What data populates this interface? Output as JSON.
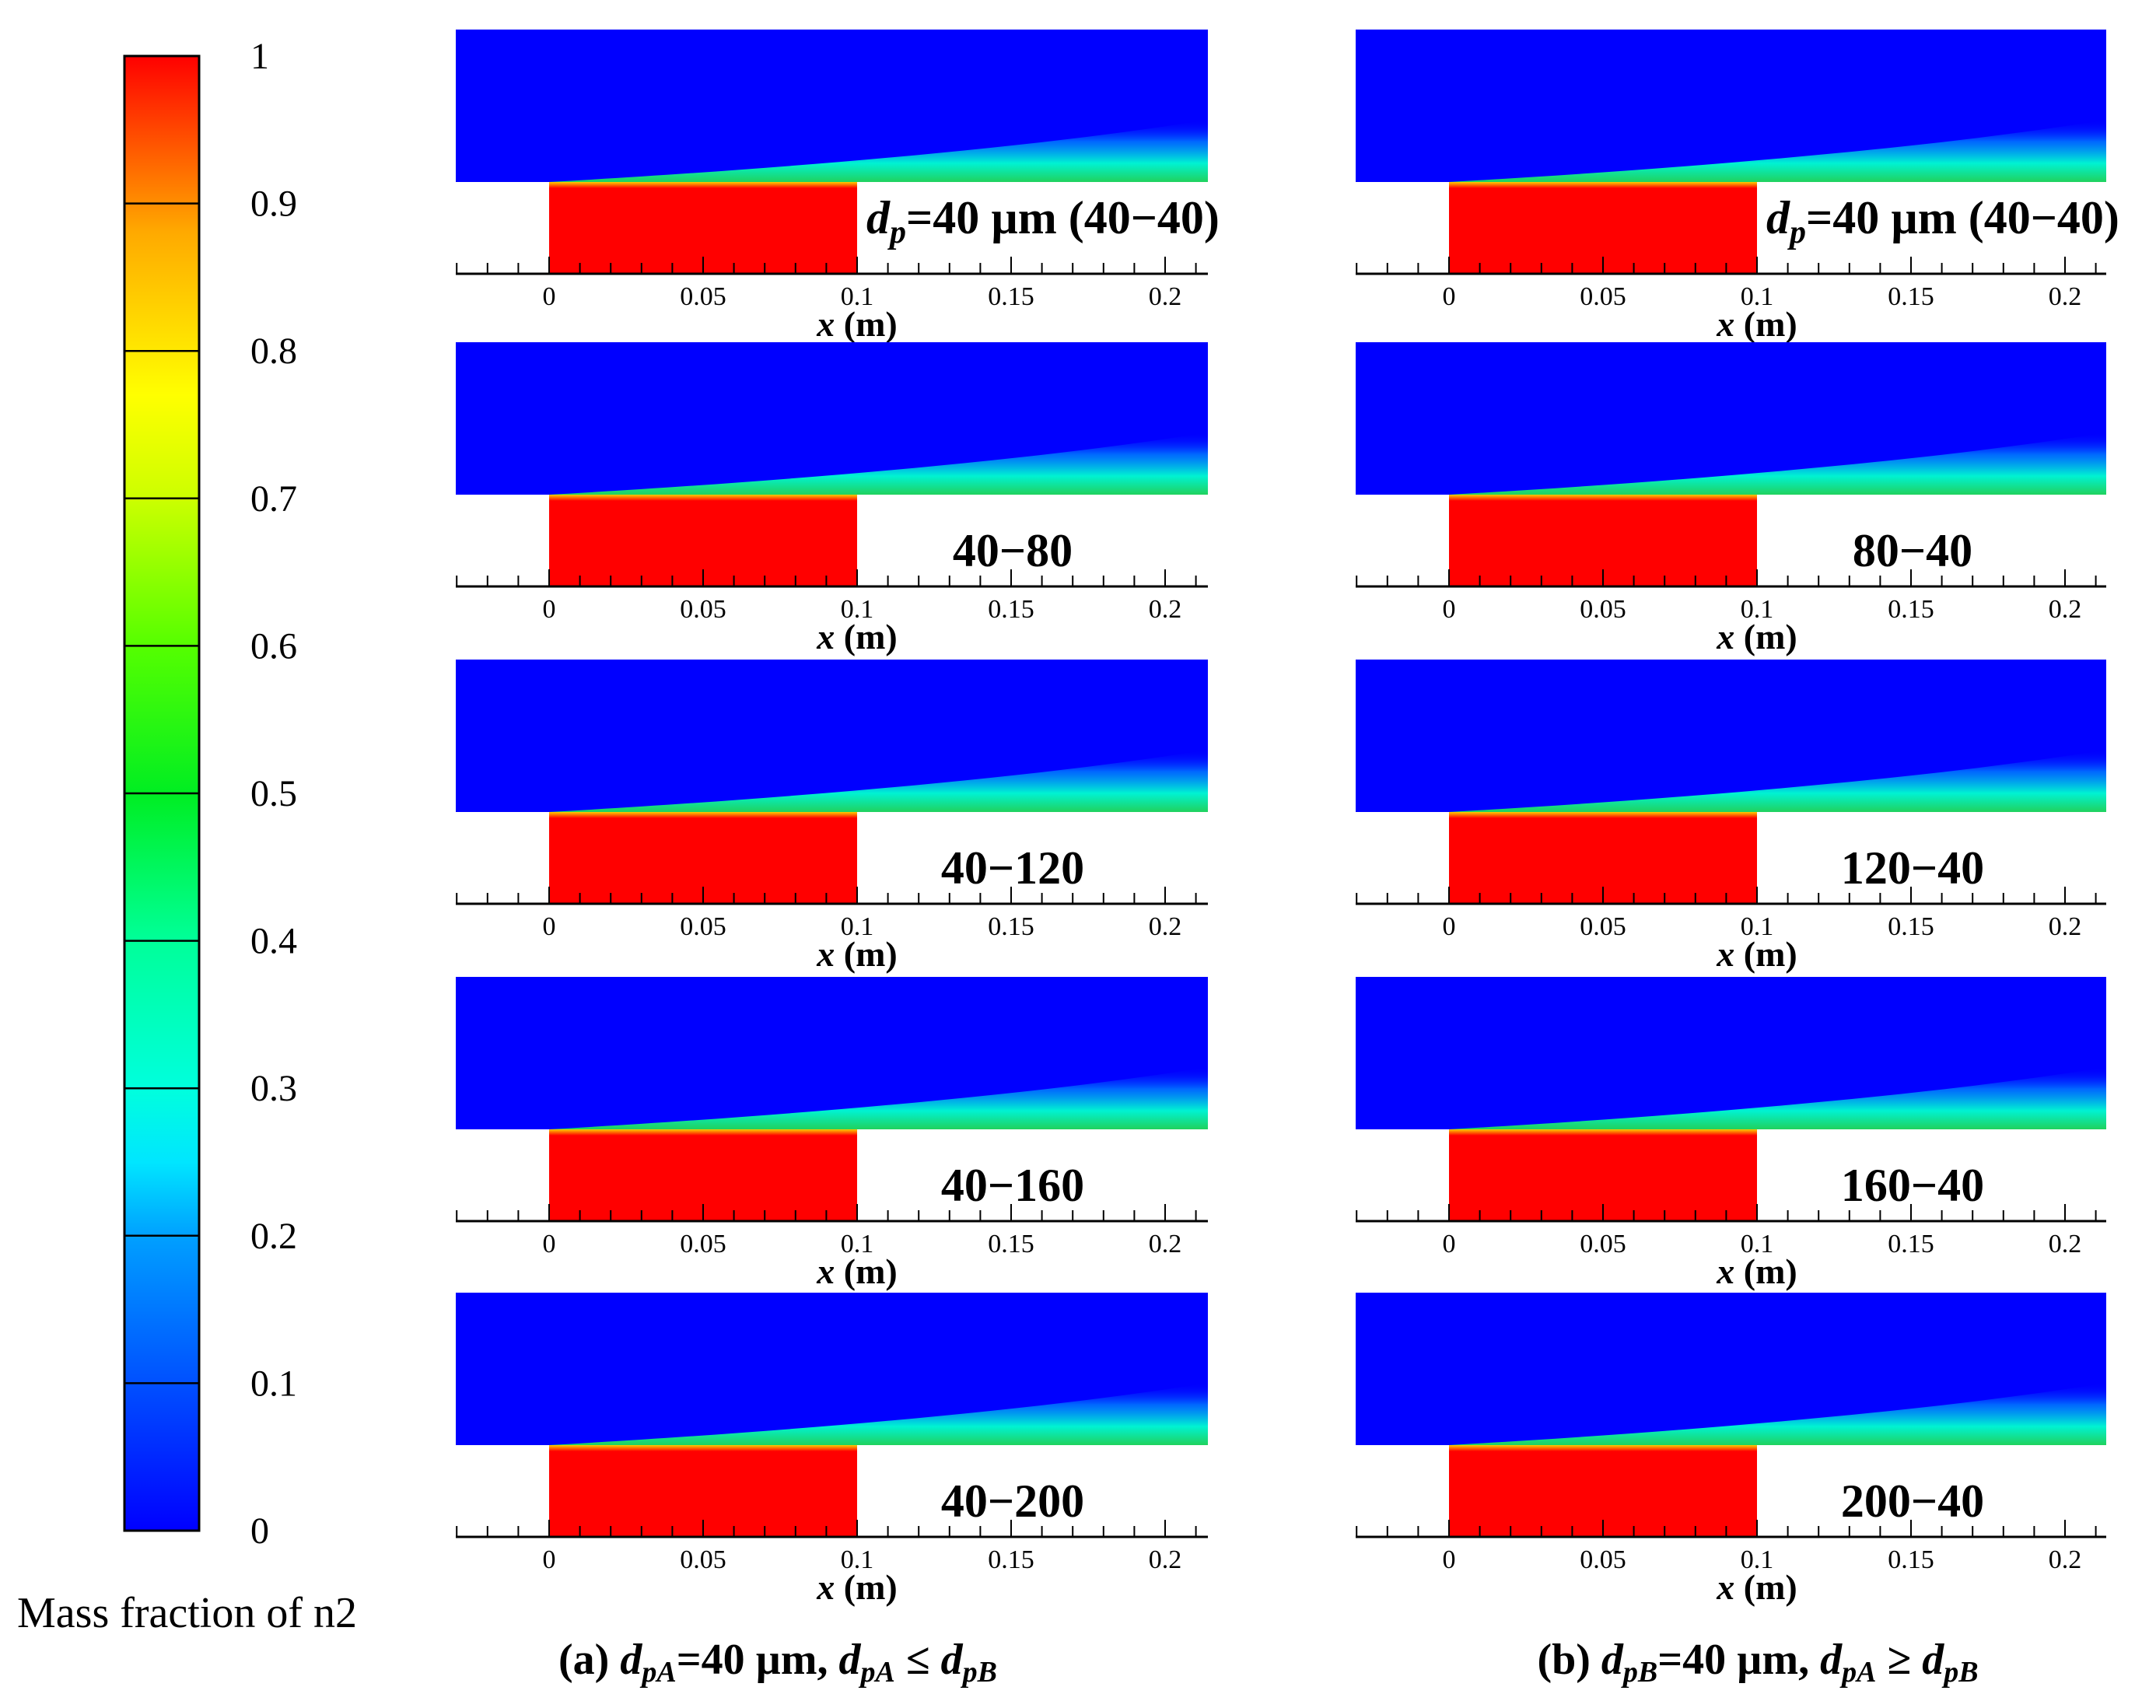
{
  "colorbar": {
    "label": "Mass fraction of n2",
    "ticks": [
      "0",
      "0.1",
      "0.2",
      "0.3",
      "0.4",
      "0.5",
      "0.6",
      "0.7",
      "0.8",
      "0.9",
      "1"
    ],
    "colors": [
      "#0000ff",
      "#0066ff",
      "#00ccff",
      "#00ffcc",
      "#00ff66",
      "#00ff00",
      "#66ff00",
      "#ccff00",
      "#ffff00",
      "#ffaa00",
      "#ff5500",
      "#ff0000"
    ]
  },
  "axis": {
    "xlabel_var": "x",
    "xlabel_unit": " (m)",
    "ticks": [
      "0",
      "0.05",
      "0.1",
      "0.15",
      "0.2"
    ]
  },
  "panels": [
    {
      "caption": {
        "a": "(a) ",
        "d1": "d",
        "s1": "pA",
        "m1": "=40 µm, ",
        "d2": "d",
        "s2": "pA",
        "m2": " ≤ ",
        "d3": "d",
        "s3": "pB"
      },
      "rows": [
        {
          "label": "40−40",
          "first": true
        },
        {
          "label": "40−80"
        },
        {
          "label": "40−120"
        },
        {
          "label": "40−160"
        },
        {
          "label": "40−200"
        }
      ]
    },
    {
      "caption": {
        "a": "(b) ",
        "d1": "d",
        "s1": "pB",
        "m1": "=40 µm, ",
        "d2": "d",
        "s2": "pA",
        "m2": " ≥ ",
        "d3": "d",
        "s3": "pB"
      },
      "rows": [
        {
          "label": "40−40",
          "first": true
        },
        {
          "label": "80−40"
        },
        {
          "label": "120−40"
        },
        {
          "label": "160−40"
        },
        {
          "label": "200−40"
        }
      ]
    }
  ],
  "first_label": {
    "d": "d",
    "sub": "p",
    "text": "=40 µm (40−40)"
  },
  "colors": {
    "low": "#0000ff",
    "high": "#ff0000"
  }
}
